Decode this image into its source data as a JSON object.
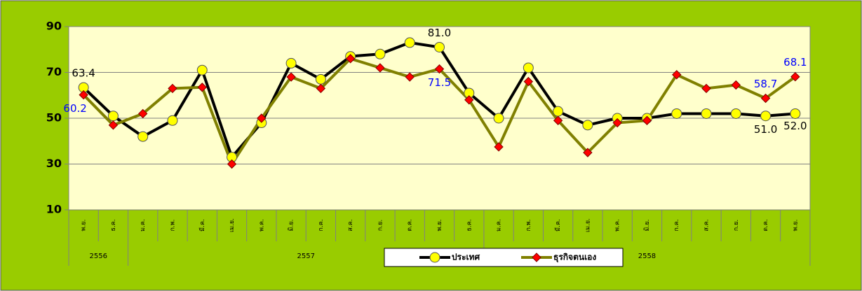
{
  "chart_data": {
    "type": "line",
    "categories": [
      "พ.ย.",
      "ธ.ค.",
      "ม.ค.",
      "ก.พ.",
      "มี.ค.",
      "เม.ย.",
      "พ.ค.",
      "มิ.ย.",
      "ก.ค.",
      "ส.ค.",
      "ก.ย.",
      "ต.ค.",
      "พ.ย.",
      "ธ.ค.",
      "ม.ค.",
      "ก.พ.",
      "มี.ค.",
      "เม.ย.",
      "พ.ค.",
      "มิ.ย.",
      "ก.ค.",
      "ส.ค.",
      "ก.ย.",
      "ต.ค.",
      "พ.ย."
    ],
    "years": [
      {
        "label": "2556",
        "span": 2
      },
      {
        "label": "2557",
        "span": 12
      },
      {
        "label": "2558",
        "span": 11
      }
    ],
    "series": [
      {
        "name": "ประเทศ",
        "color": "#000000",
        "marker_color": "#ffff00",
        "marker": "circle",
        "label_color": "#000000",
        "values": [
          63.4,
          51,
          42,
          49,
          71,
          33,
          48,
          74,
          67,
          77,
          78,
          83,
          81,
          61,
          50,
          72,
          53,
          47,
          50,
          50,
          52,
          52,
          52,
          51,
          52
        ],
        "value_labels": [
          "63.4",
          null,
          null,
          null,
          null,
          null,
          null,
          null,
          null,
          null,
          null,
          null,
          "81.0",
          null,
          null,
          null,
          null,
          null,
          null,
          null,
          null,
          null,
          null,
          "51.0",
          "52.0"
        ]
      },
      {
        "name": "ธุรกิจตนเอง",
        "color": "#808000",
        "marker_color": "#ff0000",
        "marker": "diamond",
        "label_color": "#0000ff",
        "values": [
          60.2,
          47,
          52,
          63,
          63.5,
          30,
          50,
          68,
          63,
          76,
          72,
          68,
          71.5,
          58,
          37.5,
          66,
          49,
          35,
          48,
          49,
          69,
          63,
          64.5,
          58.7,
          68.1
        ],
        "value_labels": [
          "60.2",
          null,
          null,
          null,
          null,
          null,
          null,
          null,
          null,
          null,
          null,
          null,
          "71.5",
          null,
          null,
          null,
          null,
          null,
          null,
          null,
          null,
          null,
          null,
          "58.7",
          "68.1"
        ]
      }
    ],
    "ylim": [
      10,
      90
    ],
    "yticks": [
      10,
      30,
      50,
      70,
      90
    ],
    "grid": true,
    "legend": "bottom"
  }
}
